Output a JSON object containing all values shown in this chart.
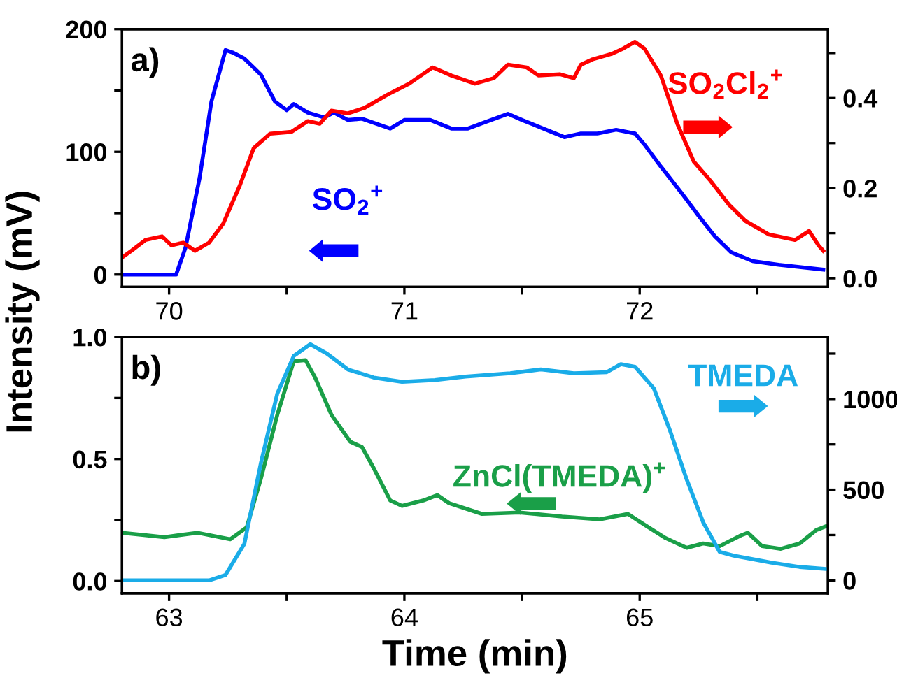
{
  "chart_data": [
    {
      "type": "line",
      "annotations": [
        "a)"
      ],
      "ylabel": "Intensity (mV)",
      "xlim": [
        69.8,
        72.8
      ],
      "xticks": [
        70,
        {
          "value": 70.5,
          "label": null
        },
        71,
        {
          "value": 71.5,
          "label": null
        },
        72,
        {
          "value": 72.5,
          "label": null
        }
      ],
      "ylim": [
        -10,
        200
      ],
      "yticks": [
        0,
        {
          "value": 50,
          "label": null
        },
        100,
        {
          "value": 150,
          "label": null
        },
        200
      ],
      "y2lim": [
        -0.019,
        0.553
      ],
      "y2ticks": [
        {
          "value": 0,
          "label": "0.0"
        },
        {
          "value": 0.1,
          "label": null
        },
        0.2,
        {
          "value": 0.3,
          "label": null
        },
        0.4,
        {
          "value": 0.5,
          "label": null
        }
      ],
      "grid": false,
      "legend": false,
      "marker": "none",
      "line_style": "solid",
      "series": [
        {
          "name": "SO$_{2}$$^{+}$",
          "color": "#0000ff",
          "axis": "y",
          "x": [
            69.8,
            70.03,
            70.07,
            70.13,
            70.18,
            70.24,
            70.27,
            70.32,
            70.39,
            70.45,
            70.5,
            70.53,
            70.59,
            70.66,
            70.7,
            70.76,
            70.82,
            70.94,
            71.0,
            71.11,
            71.2,
            71.27,
            71.34,
            71.44,
            71.5,
            71.59,
            71.68,
            71.75,
            71.82,
            71.9,
            71.98,
            72.02,
            72.09,
            72.18,
            72.25,
            72.32,
            72.39,
            72.48,
            72.59,
            72.78
          ],
          "values": [
            0,
            0,
            22,
            79,
            141,
            183,
            181,
            176,
            163,
            141,
            134,
            139,
            132,
            128,
            132,
            126,
            127,
            119,
            126,
            126,
            119,
            119,
            124,
            131,
            126,
            119,
            112,
            115,
            115,
            118,
            115,
            106,
            88,
            66,
            48,
            31,
            18,
            11,
            8,
            4
          ]
        },
        {
          "name": "SO$_{2}$Cl$_{2}$$^{+}$",
          "color": "#ff0000",
          "axis": "y2",
          "x": [
            69.8,
            69.84,
            69.9,
            69.97,
            70.01,
            70.06,
            70.11,
            70.17,
            70.23,
            70.3,
            70.36,
            70.43,
            70.52,
            70.59,
            70.64,
            70.69,
            70.76,
            70.83,
            70.93,
            71.02,
            71.12,
            71.2,
            71.3,
            71.38,
            71.44,
            71.52,
            71.57,
            71.66,
            71.72,
            71.75,
            71.8,
            71.88,
            71.93,
            71.98,
            72.02,
            72.09,
            72.16,
            72.23,
            72.3,
            72.38,
            72.45,
            72.55,
            72.66,
            72.72,
            72.76,
            72.78
          ],
          "values": [
            0.046,
            0.061,
            0.085,
            0.093,
            0.073,
            0.079,
            0.061,
            0.079,
            0.121,
            0.205,
            0.289,
            0.321,
            0.325,
            0.349,
            0.343,
            0.372,
            0.366,
            0.378,
            0.408,
            0.432,
            0.468,
            0.45,
            0.432,
            0.444,
            0.474,
            0.468,
            0.45,
            0.453,
            0.444,
            0.474,
            0.486,
            0.498,
            0.51,
            0.525,
            0.51,
            0.45,
            0.343,
            0.259,
            0.217,
            0.163,
            0.127,
            0.097,
            0.085,
            0.105,
            0.073,
            0.061
          ]
        }
      ]
    },
    {
      "type": "line",
      "annotations": [
        "b)"
      ],
      "xlabel": "Time (min)",
      "xlim": [
        62.8,
        65.8
      ],
      "xticks": [
        63,
        {
          "value": 63.5,
          "label": null
        },
        64,
        {
          "value": 64.5,
          "label": null
        },
        65,
        {
          "value": 65.5,
          "label": null
        }
      ],
      "ylim": [
        -0.05,
        1.0
      ],
      "yticks": [
        {
          "value": 0,
          "label": "0.0"
        },
        {
          "value": 0.25,
          "label": null
        },
        0.5,
        {
          "value": 0.75,
          "label": null
        },
        {
          "value": 1,
          "label": "1.0"
        }
      ],
      "y2lim": [
        -71,
        1342
      ],
      "y2ticks": [
        0,
        {
          "value": 250,
          "label": null
        },
        500,
        {
          "value": 750,
          "label": null
        },
        1000,
        {
          "value": 1250,
          "label": null
        }
      ],
      "grid": false,
      "legend": false,
      "marker": "none",
      "line_style": "solid",
      "series": [
        {
          "name": "ZnCl(TMEDA)$^{+}$",
          "color": "#1a9f48",
          "axis": "y",
          "x": [
            62.8,
            62.98,
            63.12,
            63.26,
            63.33,
            63.39,
            63.46,
            63.53,
            63.58,
            63.62,
            63.69,
            63.77,
            63.82,
            63.87,
            63.94,
            63.99,
            64.08,
            64.14,
            64.19,
            64.33,
            64.49,
            64.67,
            64.83,
            64.95,
            65.02,
            65.11,
            65.2,
            65.27,
            65.34,
            65.43,
            65.46,
            65.52,
            65.6,
            65.68,
            65.75,
            65.79
          ],
          "values": [
            0.198,
            0.18,
            0.198,
            0.171,
            0.22,
            0.418,
            0.681,
            0.901,
            0.905,
            0.835,
            0.681,
            0.571,
            0.549,
            0.462,
            0.33,
            0.308,
            0.33,
            0.352,
            0.319,
            0.275,
            0.281,
            0.264,
            0.253,
            0.275,
            0.231,
            0.176,
            0.136,
            0.154,
            0.143,
            0.187,
            0.198,
            0.143,
            0.132,
            0.154,
            0.209,
            0.224
          ]
        },
        {
          "name": "TMEDA",
          "color": "#1aace8",
          "axis": "y2",
          "x": [
            62.8,
            63.17,
            63.24,
            63.32,
            63.39,
            63.46,
            63.53,
            63.6,
            63.67,
            63.76,
            63.87,
            63.99,
            64.13,
            64.26,
            64.45,
            64.58,
            64.72,
            64.86,
            64.92,
            64.98,
            65.06,
            65.13,
            65.2,
            65.27,
            65.34,
            65.4,
            65.56,
            65.68,
            65.8
          ],
          "values": [
            0,
            0,
            30,
            201,
            645,
            1030,
            1237,
            1302,
            1251,
            1163,
            1118,
            1095,
            1104,
            1124,
            1142,
            1163,
            1142,
            1148,
            1192,
            1178,
            1059,
            822,
            556,
            320,
            157,
            136,
            98,
            74,
            62
          ]
        }
      ]
    }
  ]
}
